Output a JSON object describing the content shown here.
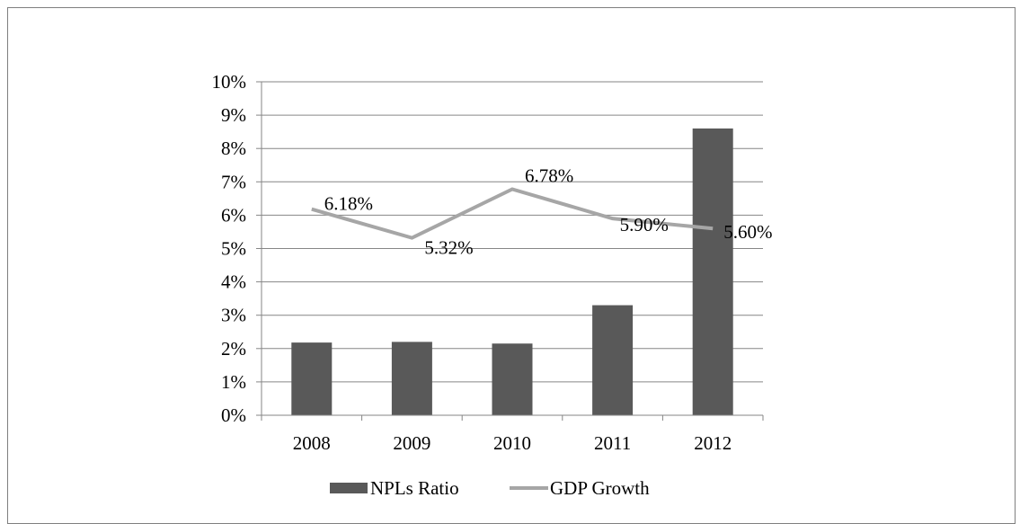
{
  "chart_data": {
    "type": "bar",
    "title": "",
    "xlabel": "",
    "ylabel": "",
    "categories": [
      "2008",
      "2009",
      "2010",
      "2011",
      "2012"
    ],
    "ylim": [
      0,
      10
    ],
    "y_ticks": [
      "0%",
      "1%",
      "2%",
      "3%",
      "4%",
      "5%",
      "6%",
      "7%",
      "8%",
      "9%",
      "10%"
    ],
    "grid": true,
    "legend_position": "bottom",
    "series": [
      {
        "name": "NPLs Ratio",
        "type": "bar",
        "color": "#595959",
        "values": [
          2.18,
          2.2,
          2.15,
          3.3,
          8.6
        ]
      },
      {
        "name": "GDP Growth",
        "type": "line",
        "color": "#a6a6a6",
        "values": [
          6.18,
          5.32,
          6.78,
          5.9,
          5.6
        ],
        "data_labels": [
          "6.18%",
          "5.32%",
          "6.78%",
          "5.90%",
          "5.60%"
        ]
      }
    ]
  }
}
